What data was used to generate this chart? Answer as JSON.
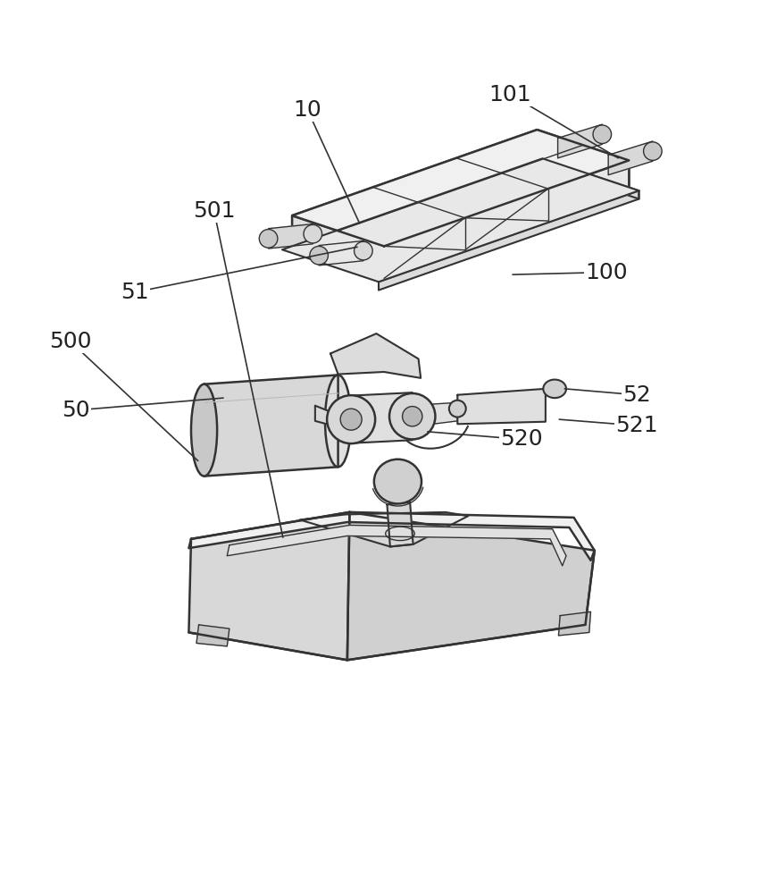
{
  "bg_color": "#ffffff",
  "line_color": "#333333",
  "line_width": 1.5,
  "figsize": [
    8.6,
    10.0
  ],
  "dpi": 100,
  "label_fontsize": 18
}
